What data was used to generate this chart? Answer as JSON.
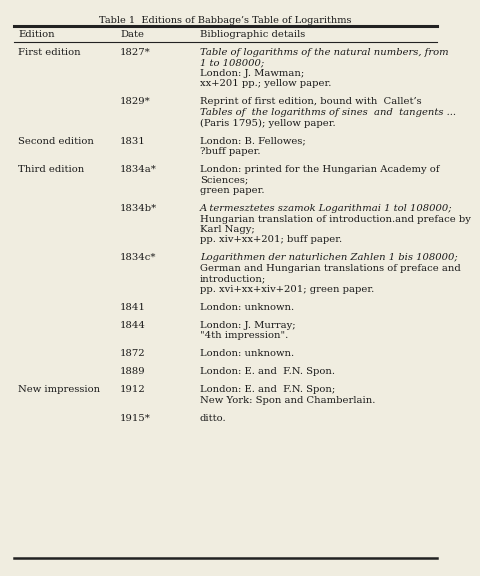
{
  "title": "Table 1  Editions of Babbage’s Table of Logarithms",
  "col_headers": [
    "Edition",
    "Date",
    "Bibliographic details"
  ],
  "bg_color": "#f0ede0",
  "text_color": "#1a1a1a",
  "rows": [
    {
      "edition": "First edition",
      "date": "1827*",
      "bib": [
        {
          "text": "Table of logarithms of the natural numbers, from",
          "italic": true
        },
        {
          "text": "1 to 108000;",
          "italic": true
        },
        {
          "text": "London: J. Mawman;",
          "italic": false
        },
        {
          "text": "xx+201 pp.; yellow paper.",
          "italic": false
        }
      ]
    },
    {
      "edition": "",
      "date": "1829*",
      "bib": [
        {
          "text": "Reprint of first edition, bound with  Callet’s",
          "italic": false
        },
        {
          "text": "Tables of  the logarithms of sines  and  tangents ...",
          "italic": true
        },
        {
          "text": "(Paris 1795); yellow paper.",
          "italic": false
        }
      ]
    },
    {
      "edition": "Second edition",
      "date": "1831",
      "bib": [
        {
          "text": "London: B. Fellowes;",
          "italic": false
        },
        {
          "text": "?buff paper.",
          "italic": false
        }
      ]
    },
    {
      "edition": "Third edition",
      "date": "1834a*",
      "bib": [
        {
          "text": "London: printed for the Hungarian Academy of",
          "italic": false
        },
        {
          "text": "Sciences;",
          "italic": false
        },
        {
          "text": "green paper.",
          "italic": false
        }
      ]
    },
    {
      "edition": "",
      "date": "1834b*",
      "bib": [
        {
          "text": "A termesztetes szamok Logarithmai 1 tol 108000;",
          "italic": true
        },
        {
          "text": "Hungarian translation of introduction.and preface by",
          "italic": false
        },
        {
          "text": "Karl Nagy;",
          "italic": false
        },
        {
          "text": "pp. xiv+xx+201; buff paper.",
          "italic": false
        }
      ]
    },
    {
      "edition": "",
      "date": "1834c*",
      "bib": [
        {
          "text": "Logarithmen der naturlichen Zahlen 1 bis 108000;",
          "italic": true
        },
        {
          "text": "German and Hungarian translations of preface and",
          "italic": false
        },
        {
          "text": "introduction;",
          "italic": false
        },
        {
          "text": "pp. xvi+xx+xiv+201; green paper.",
          "italic": false
        }
      ]
    },
    {
      "edition": "",
      "date": "1841",
      "bib": [
        {
          "text": "London: unknown.",
          "italic": false
        }
      ]
    },
    {
      "edition": "",
      "date": "1844",
      "bib": [
        {
          "text": "London: J. Murray;",
          "italic": false
        },
        {
          "text": "\"4th impression\".",
          "italic": false
        }
      ]
    },
    {
      "edition": "",
      "date": "1872",
      "bib": [
        {
          "text": "London: unknown.",
          "italic": false
        }
      ]
    },
    {
      "edition": "",
      "date": "1889",
      "bib": [
        {
          "text": "London: E. and  F.N. Spon.",
          "italic": false
        }
      ]
    },
    {
      "edition": "New impression",
      "date": "1912",
      "bib": [
        {
          "text": "London: E. and  F.N. Spon;",
          "italic": false
        },
        {
          "text": "New York: Spon and Chamberlain.",
          "italic": false
        }
      ]
    },
    {
      "edition": "",
      "date": "1915*",
      "bib": [
        {
          "text": "ditto.",
          "italic": false
        }
      ]
    }
  ]
}
